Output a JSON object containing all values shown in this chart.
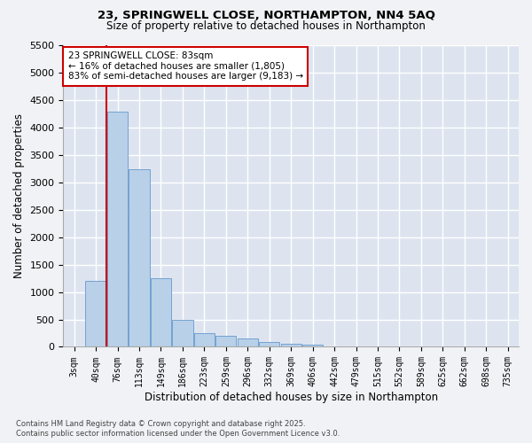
{
  "title1": "23, SPRINGWELL CLOSE, NORTHAMPTON, NN4 5AQ",
  "title2": "Size of property relative to detached houses in Northampton",
  "xlabel": "Distribution of detached houses by size in Northampton",
  "ylabel": "Number of detached properties",
  "annotation_line1": "23 SPRINGWELL CLOSE: 83sqm",
  "annotation_line2": "← 16% of detached houses are smaller (1,805)",
  "annotation_line3": "83% of semi-detached houses are larger (9,183) →",
  "categories": [
    "3sqm",
    "40sqm",
    "76sqm",
    "113sqm",
    "149sqm",
    "186sqm",
    "223sqm",
    "259sqm",
    "296sqm",
    "332sqm",
    "369sqm",
    "406sqm",
    "442sqm",
    "479sqm",
    "515sqm",
    "552sqm",
    "589sqm",
    "625sqm",
    "662sqm",
    "698sqm",
    "735sqm"
  ],
  "values": [
    0,
    1200,
    4300,
    3250,
    1250,
    500,
    250,
    200,
    150,
    90,
    60,
    40,
    0,
    0,
    0,
    0,
    0,
    0,
    0,
    0,
    0
  ],
  "bar_color": "#b8d0e8",
  "bar_edge_color": "#6699cc",
  "vline_color": "#cc0000",
  "annotation_box_color": "#cc0000",
  "background_color": "#dde4f0",
  "grid_color": "#ffffff",
  "fig_background": "#f0f2f5",
  "footer1": "Contains HM Land Registry data © Crown copyright and database right 2025.",
  "footer2": "Contains public sector information licensed under the Open Government Licence v3.0.",
  "ylim": [
    0,
    5500
  ],
  "yticks": [
    0,
    500,
    1000,
    1500,
    2000,
    2500,
    3000,
    3500,
    4000,
    4500,
    5000,
    5500
  ],
  "vline_index": 2
}
